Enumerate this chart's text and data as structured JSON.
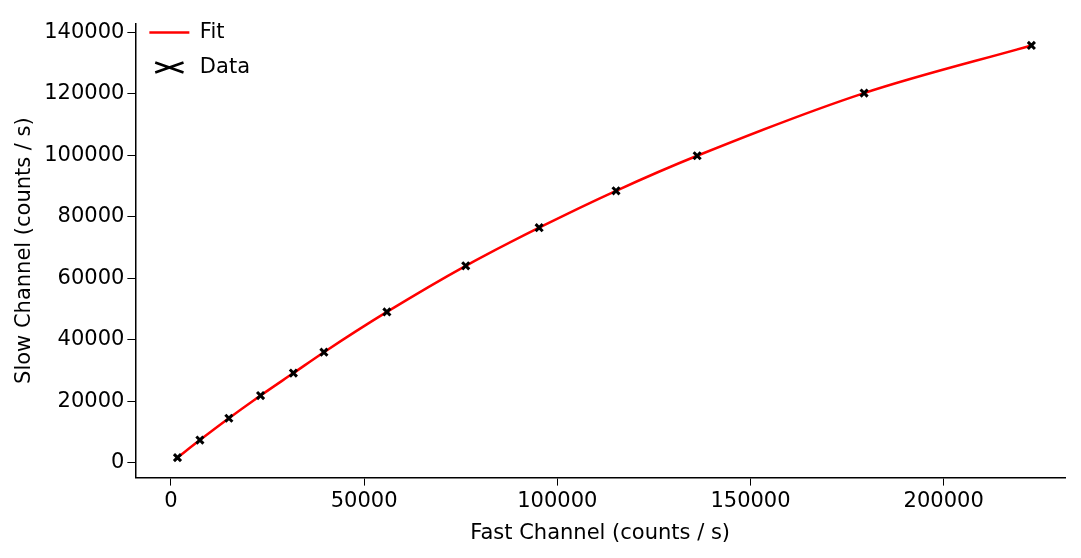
{
  "chart_data": {
    "type": "scatter",
    "xlabel": "Fast Channel (counts / s)",
    "ylabel": "Slow Channel (counts / s)",
    "xlim": [
      -9200,
      231400
    ],
    "xticks": [
      0,
      50000,
      100000,
      150000,
      200000
    ],
    "ylim": [
      -4800,
      142900
    ],
    "yticks": [
      0,
      20000,
      40000,
      60000,
      80000,
      100000,
      120000,
      140000
    ],
    "grid": false,
    "legend": "top left",
    "series": [
      {
        "name": "Fit",
        "type": "line",
        "color": "#ff0000",
        "marker": "none",
        "line_style": "solid",
        "x": [
          1700,
          7500,
          15000,
          23200,
          31700,
          39600,
          55900,
          76300,
          95300,
          115200,
          136200,
          179400,
          222700
        ],
        "values": [
          1700,
          7400,
          14500,
          21900,
          29200,
          36000,
          49100,
          64100,
          76500,
          88500,
          99900,
          120300,
          135800
        ]
      },
      {
        "name": "Data",
        "type": "scatter",
        "color": "#000000",
        "marker": "cross",
        "x": [
          1700,
          7500,
          15000,
          23200,
          31700,
          39600,
          55900,
          76300,
          95300,
          115200,
          136200,
          179400,
          222700
        ],
        "values": [
          1700,
          7400,
          14500,
          21900,
          29200,
          36000,
          49100,
          64100,
          76500,
          88500,
          99900,
          120300,
          135800
        ]
      }
    ]
  }
}
